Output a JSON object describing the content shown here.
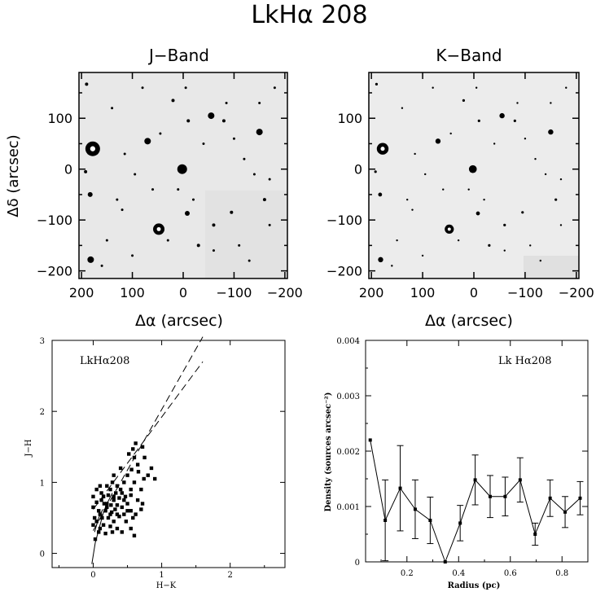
{
  "figure": {
    "title": "LkHα 208",
    "panels": {
      "j_band": {
        "title": "J−Band"
      },
      "k_band": {
        "title": "K−Band"
      }
    },
    "images": {
      "xlabel": "Δα (arcsec)",
      "ylabel": "Δδ (arcsec)",
      "x_ticks": [
        "200",
        "100",
        "0",
        "−100",
        "−200"
      ],
      "y_ticks": [
        "100",
        "0",
        "−100",
        "−200"
      ]
    },
    "ccd": {
      "label": "LkHα208",
      "xlabel": "H−K",
      "ylabel": "J−H",
      "x_ticks": [
        "0",
        "1",
        "2"
      ],
      "y_ticks": [
        "0",
        "1",
        "2",
        "3"
      ]
    },
    "density": {
      "label": "Lk Hα208",
      "xlabel": "Radius (pc)",
      "ylabel": "Density (sources arcsec⁻²)",
      "x_ticks": [
        "0.2",
        "0.4",
        "0.6",
        "0.8"
      ],
      "y_ticks": [
        "0",
        "0.001",
        "0.002",
        "0.003",
        "0.004"
      ]
    }
  },
  "chart_data": [
    {
      "type": "image",
      "title": "J−Band",
      "xlabel": "Δα (arcsec)",
      "ylabel": "Δδ (arcsec)",
      "xlim": [
        205,
        -205
      ],
      "ylim": [
        -215,
        190
      ]
    },
    {
      "type": "image",
      "title": "K−Band",
      "xlabel": "Δα (arcsec)",
      "ylabel": "Δδ (arcsec)",
      "xlim": [
        205,
        -205
      ],
      "ylim": [
        -215,
        190
      ]
    },
    {
      "type": "scatter",
      "title": "LkHα208",
      "xlabel": "H−K",
      "ylabel": "J−H",
      "xlim": [
        -0.6,
        2.8
      ],
      "ylim": [
        -0.2,
        3.0
      ],
      "points": [
        [
          0.62,
          1.55
        ],
        [
          0.58,
          1.47
        ],
        [
          0.72,
          1.5
        ],
        [
          0.75,
          1.35
        ],
        [
          0.6,
          1.35
        ],
        [
          0.52,
          1.4
        ],
        [
          0.65,
          1.25
        ],
        [
          0.85,
          1.2
        ],
        [
          0.8,
          1.1
        ],
        [
          0.74,
          1.05
        ],
        [
          0.9,
          1.05
        ],
        [
          0.4,
          1.2
        ],
        [
          0.5,
          1.1
        ],
        [
          0.3,
          1.1
        ],
        [
          0.28,
          1.0
        ],
        [
          0.45,
          1.0
        ],
        [
          0.6,
          1.0
        ],
        [
          0.55,
          0.9
        ],
        [
          0.7,
          0.9
        ],
        [
          0.25,
          0.9
        ],
        [
          0.05,
          0.9
        ],
        [
          0.1,
          0.95
        ],
        [
          0.42,
          0.85
        ],
        [
          0.33,
          0.85
        ],
        [
          0.22,
          0.82
        ],
        [
          0.15,
          0.8
        ],
        [
          0.38,
          0.78
        ],
        [
          0.47,
          0.8
        ],
        [
          0.3,
          0.75
        ],
        [
          0.12,
          0.75
        ],
        [
          0.05,
          0.72
        ],
        [
          0.2,
          0.7
        ],
        [
          0.26,
          0.68
        ],
        [
          0.35,
          0.68
        ],
        [
          0.42,
          0.65
        ],
        [
          0.5,
          0.7
        ],
        [
          0.55,
          0.6
        ],
        [
          0.62,
          0.55
        ],
        [
          0.7,
          0.62
        ],
        [
          0.18,
          0.6
        ],
        [
          0.08,
          0.6
        ],
        [
          0.0,
          0.65
        ],
        [
          0.27,
          0.58
        ],
        [
          0.35,
          0.55
        ],
        [
          0.45,
          0.55
        ],
        [
          0.13,
          0.5
        ],
        [
          0.22,
          0.5
        ],
        [
          0.3,
          0.45
        ],
        [
          0.05,
          0.45
        ],
        [
          0.0,
          0.4
        ],
        [
          0.15,
          0.4
        ],
        [
          0.25,
          0.38
        ],
        [
          0.35,
          0.35
        ],
        [
          0.42,
          0.3
        ],
        [
          0.08,
          0.3
        ],
        [
          0.18,
          0.28
        ],
        [
          0.55,
          0.35
        ],
        [
          0.6,
          0.25
        ],
        [
          0.03,
          0.2
        ],
        [
          0.12,
          0.85
        ],
        [
          0.2,
          0.65
        ],
        [
          0.32,
          0.62
        ],
        [
          0.38,
          0.52
        ],
        [
          0.48,
          0.45
        ],
        [
          0.1,
          0.55
        ],
        [
          0.02,
          0.5
        ],
        [
          0.25,
          0.55
        ],
        [
          0.3,
          0.8
        ],
        [
          0.55,
          0.82
        ],
        [
          0.65,
          0.75
        ],
        [
          0.72,
          0.7
        ],
        [
          0.4,
          0.9
        ],
        [
          0.16,
          0.7
        ],
        [
          0.5,
          0.6
        ],
        [
          0.58,
          0.5
        ],
        [
          0.45,
          0.75
        ],
        [
          0.35,
          0.95
        ],
        [
          0.2,
          0.95
        ],
        [
          0.28,
          0.3
        ],
        [
          0.1,
          0.35
        ],
        [
          0.0,
          0.8
        ],
        [
          0.66,
          1.15
        ],
        [
          0.56,
          1.18
        ]
      ],
      "reddening_lines": [
        {
          "from": [
            0.0,
            0.62
          ],
          "to": [
            1.6,
            2.7
          ]
        },
        {
          "from": [
            0.0,
            0.32
          ],
          "to": [
            1.6,
            3.05
          ]
        }
      ]
    },
    {
      "type": "line",
      "title": "Lk Hα208",
      "xlabel": "Radius (pc)",
      "ylabel": "Density (sources arcsec⁻²)",
      "xlim": [
        0.04,
        0.9
      ],
      "ylim": [
        0,
        0.004
      ],
      "x": [
        0.058,
        0.116,
        0.174,
        0.232,
        0.29,
        0.348,
        0.406,
        0.464,
        0.522,
        0.58,
        0.638,
        0.696,
        0.754,
        0.812,
        0.87
      ],
      "y": [
        0.0022,
        0.00075,
        0.00133,
        0.00095,
        0.00075,
        0.0,
        0.0007,
        0.00148,
        0.00118,
        0.00118,
        0.00148,
        0.0005,
        0.00115,
        0.0009,
        0.00115
      ],
      "yerr": [
        0.0,
        0.00073,
        0.00077,
        0.00053,
        0.00042,
        0.0,
        0.00032,
        0.00045,
        0.00038,
        0.00035,
        0.0004,
        0.0002,
        0.00033,
        0.00028,
        0.0003
      ]
    }
  ]
}
